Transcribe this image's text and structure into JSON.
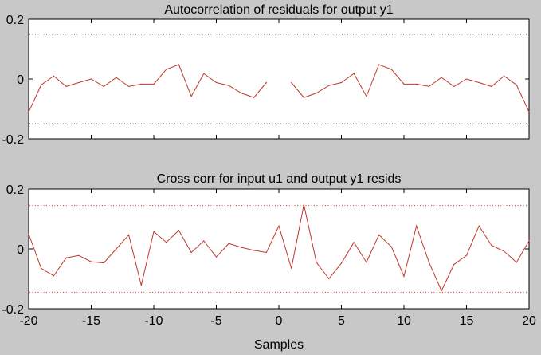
{
  "window": {
    "background": "#c8c8c8"
  },
  "colors": {
    "series": "#c0392b",
    "confidence": "#c0392b",
    "autocorr_confidence": "#000000",
    "axes_bg": "#ffffff"
  },
  "xaxis": {
    "label": "Samples",
    "ticks": [
      "-20",
      "-15",
      "-10",
      "-5",
      "0",
      "5",
      "10",
      "15",
      "20"
    ],
    "range": [
      -20,
      20
    ]
  },
  "chart_data": [
    {
      "type": "line",
      "title": "Autocorrelation of residuals for output y1",
      "ylim": [
        -0.2,
        0.2
      ],
      "yticks": [
        "0.2",
        "0",
        "-0.2"
      ],
      "confidence_band": [
        -0.15,
        0.15
      ],
      "grid": false,
      "series": [
        {
          "lags": [
            -20,
            -19,
            -18,
            -17,
            -16,
            -15,
            -14,
            -13,
            -12,
            -11,
            -10,
            -9,
            -8,
            -7,
            -6,
            -5,
            -4,
            -3,
            -2,
            -1,
            0,
            1,
            2,
            3,
            4,
            5,
            6,
            7,
            8,
            9,
            10,
            11,
            12,
            13,
            14,
            15,
            16,
            17,
            18,
            19,
            20
          ],
          "values": [
            -0.11,
            -0.02,
            0.01,
            -0.025,
            -0.012,
            0.0,
            -0.025,
            0.005,
            -0.025,
            -0.017,
            -0.017,
            0.032,
            0.048,
            -0.058,
            0.018,
            -0.012,
            -0.022,
            -0.047,
            -0.062,
            -0.012,
            null,
            -0.012,
            -0.062,
            -0.047,
            -0.022,
            -0.012,
            0.018,
            -0.058,
            0.048,
            0.032,
            -0.017,
            -0.017,
            -0.025,
            0.005,
            -0.025,
            0.0,
            -0.012,
            -0.025,
            0.01,
            -0.02,
            -0.11
          ]
        }
      ]
    },
    {
      "type": "line",
      "title": "Cross corr for input u1 and output y1 resids",
      "ylim": [
        -0.2,
        0.2
      ],
      "yticks": [
        "0.2",
        "0",
        "-0.2"
      ],
      "confidence_band": [
        -0.145,
        0.145
      ],
      "grid": false,
      "series": [
        {
          "lags": [
            -20,
            -19,
            -18,
            -17,
            -16,
            -15,
            -14,
            -13,
            -12,
            -11,
            -10,
            -9,
            -8,
            -7,
            -6,
            -5,
            -4,
            -3,
            -2,
            -1,
            0,
            1,
            2,
            3,
            4,
            5,
            6,
            7,
            8,
            9,
            10,
            11,
            12,
            13,
            14,
            15,
            16,
            17,
            18,
            19,
            20
          ],
          "values": [
            0.05,
            -0.065,
            -0.09,
            -0.03,
            -0.022,
            -0.043,
            -0.047,
            0.0,
            0.047,
            -0.122,
            0.058,
            0.022,
            0.062,
            -0.012,
            0.027,
            -0.027,
            0.018,
            0.005,
            -0.005,
            -0.012,
            0.077,
            -0.065,
            0.148,
            -0.045,
            -0.1,
            -0.048,
            0.022,
            -0.045,
            0.047,
            0.007,
            -0.092,
            0.077,
            -0.045,
            -0.14,
            -0.052,
            -0.022,
            0.077,
            0.012,
            -0.008,
            -0.045,
            0.027
          ]
        }
      ]
    }
  ]
}
